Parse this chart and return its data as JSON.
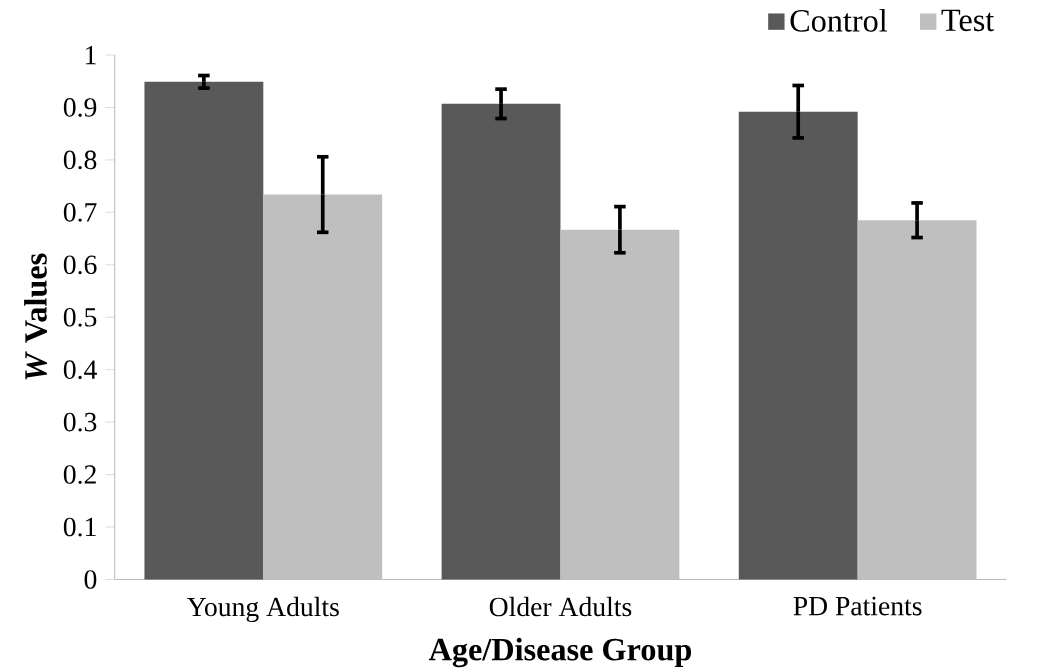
{
  "chart_data": {
    "type": "bar",
    "xlabel": "Age/Disease Group",
    "ylabel": "*W* Values",
    "categories": [
      "Young Adults",
      "Older Adults",
      "PD Patients"
    ],
    "series": [
      {
        "name": "Control",
        "color": "#595959",
        "values": [
          0.949,
          0.907,
          0.892
        ],
        "errors": [
          0.012,
          0.028,
          0.05
        ]
      },
      {
        "name": "Test",
        "color": "#bfbfbf",
        "values": [
          0.734,
          0.667,
          0.685
        ],
        "errors": [
          0.072,
          0.044,
          0.033
        ]
      }
    ],
    "ylim": [
      0,
      1
    ],
    "yticks": [
      0,
      0.1,
      0.2,
      0.3,
      0.4,
      0.5,
      0.6,
      0.7,
      0.8,
      0.9,
      1
    ],
    "grid": false,
    "legend": "top right"
  }
}
